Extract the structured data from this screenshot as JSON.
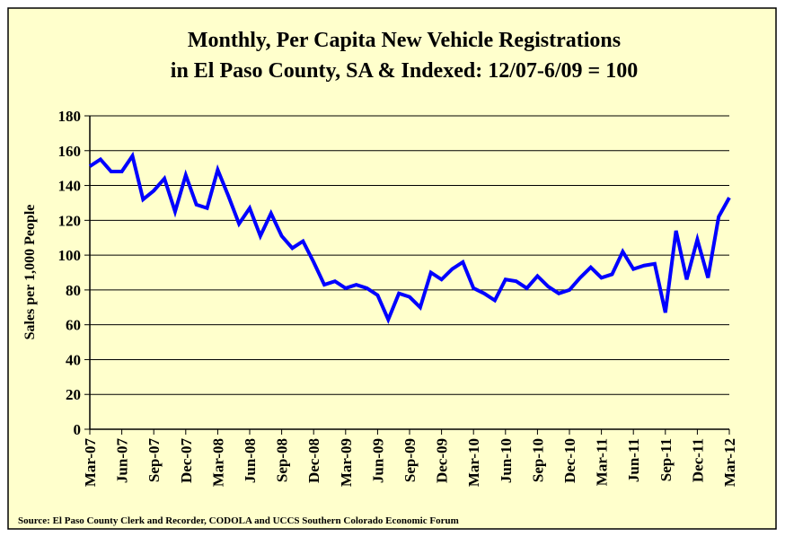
{
  "chart_data": {
    "type": "line",
    "title": "Monthly, Per Capita New Vehicle Registrations",
    "subtitle": "in El Paso County, SA & Indexed: 12/07-6/09 = 100",
    "y_label": "Sales per 1,000 People",
    "source": "Source: El Paso County Clerk and Recorder, CODOLA and UCCS Southern Colorado Economic Forum",
    "categories": [
      "Mar-07",
      null,
      null,
      "Jun-07",
      null,
      null,
      "Sep-07",
      null,
      null,
      "Dec-07",
      null,
      null,
      "Mar-08",
      null,
      null,
      "Jun-08",
      null,
      null,
      "Sep-08",
      null,
      null,
      "Dec-08",
      null,
      null,
      "Mar-09",
      null,
      null,
      "Jun-09",
      null,
      null,
      "Sep-09",
      null,
      null,
      "Dec-09",
      null,
      null,
      "Mar-10",
      null,
      null,
      "Jun-10",
      null,
      null,
      "Sep-10",
      null,
      null,
      "Dec-10",
      null,
      null,
      "Mar-11",
      null,
      null,
      "Jun-11",
      null,
      null,
      "Sep-11",
      null,
      null,
      "Dec-11",
      null,
      null,
      "Mar-12"
    ],
    "series": [
      {
        "name": "Registrations",
        "color": "#0000ff",
        "values": [
          151,
          155,
          148,
          148,
          157,
          132,
          137,
          144,
          125,
          146,
          129,
          127,
          149,
          134,
          118,
          127,
          111,
          124,
          111,
          104,
          108,
          96,
          83,
          85,
          81,
          83,
          81,
          77,
          63,
          78,
          76,
          70,
          90,
          86,
          92,
          96,
          81,
          78,
          74,
          86,
          85,
          81,
          88,
          82,
          78,
          80,
          87,
          93,
          87,
          89,
          102,
          92,
          94,
          95,
          67,
          114,
          86,
          109,
          87,
          122,
          133
        ]
      }
    ],
    "ylim": [
      0,
      180
    ],
    "yticks": [
      0,
      20,
      40,
      60,
      80,
      100,
      120,
      140,
      160,
      180
    ],
    "grid": true,
    "background": "#ffffcc"
  }
}
